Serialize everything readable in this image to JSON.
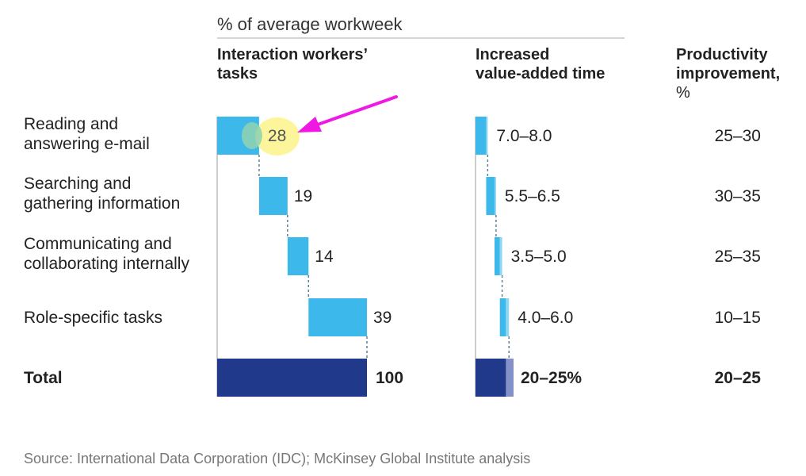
{
  "unit_label": "% of average workweek",
  "headers": {
    "tasks": [
      "Interaction workers’",
      "tasks"
    ],
    "value_added": [
      "Increased",
      "value-added time"
    ],
    "productivity": [
      "Productivity",
      "improvement,",
      "%"
    ]
  },
  "rows": [
    {
      "label": [
        "Reading and",
        "answering e-mail"
      ]
    },
    {
      "label": [
        "Searching and",
        "gathering information"
      ]
    },
    {
      "label": [
        "Communicating and",
        "collaborating internally"
      ]
    },
    {
      "label": [
        "Role-specific tasks"
      ]
    },
    {
      "label": [
        "Total"
      ]
    }
  ],
  "source": "Source: International Data Corporation (IDC); McKinsey Global Institute analysis",
  "colors": {
    "bar": "#3db8ea",
    "bar_light": "#8fd6f3",
    "total": "#21398b",
    "total_light": "#8491c9",
    "connector": "#5d7f96",
    "axis": "#999999",
    "highlight": "#fbf38a",
    "highlight_overlap": "#8fd2b2",
    "arrow": "#f018e3"
  },
  "chart_data": [
    {
      "type": "bar",
      "subtype": "waterfall",
      "title": "Interaction workers’ tasks",
      "unit": "% of average workweek",
      "categories": [
        "Reading and answering e-mail",
        "Searching and gathering information",
        "Communicating and collaborating internally",
        "Role-specific tasks",
        "Total"
      ],
      "values": [
        28,
        19,
        14,
        39,
        100
      ],
      "value_labels": [
        "28",
        "19",
        "14",
        "39",
        "100"
      ],
      "xlim": [
        0,
        100
      ],
      "annotations": [
        "value 28 highlighted with a magenta arrow"
      ]
    },
    {
      "type": "bar",
      "subtype": "waterfall-range",
      "title": "Increased value-added time",
      "categories": [
        "Reading and answering e-mail",
        "Searching and gathering information",
        "Communicating and collaborating internally",
        "Role-specific tasks",
        "Total"
      ],
      "low": [
        7.0,
        5.5,
        3.5,
        4.0,
        20
      ],
      "high": [
        8.0,
        6.5,
        5.0,
        6.0,
        25
      ],
      "value_labels": [
        "7.0–8.0",
        "5.5–6.5",
        "3.5–5.0",
        "4.0–6.0",
        "20–25%"
      ]
    },
    {
      "type": "table",
      "title": "Productivity improvement, %",
      "categories": [
        "Reading and answering e-mail",
        "Searching and gathering information",
        "Communicating and collaborating internally",
        "Role-specific tasks",
        "Total"
      ],
      "values": [
        "25–30",
        "30–35",
        "25–35",
        "10–15",
        "20–25"
      ]
    }
  ]
}
